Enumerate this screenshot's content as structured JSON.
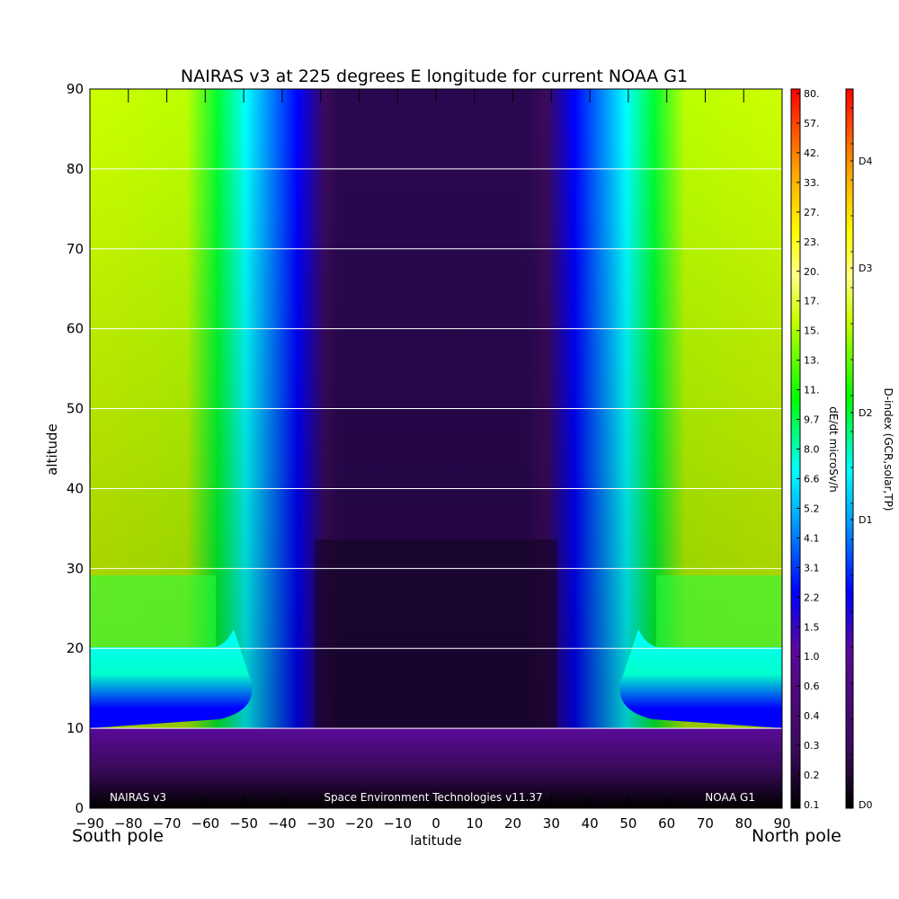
{
  "chart_data": {
    "type": "heatmap",
    "title": "NAIRAS v3 at 225 degrees E longitude for current NOAA G1",
    "xlabel": "latitude",
    "ylabel": "altitude",
    "xlim": [
      -90,
      90
    ],
    "ylim": [
      0,
      90
    ],
    "x_ticks": [
      "-90",
      "-80",
      "-70",
      "-60",
      "-50",
      "-40",
      "-30",
      "-20",
      "-10",
      "0",
      "10",
      "20",
      "30",
      "40",
      "50",
      "60",
      "70",
      "80",
      "90"
    ],
    "y_ticks": [
      "0",
      "10",
      "20",
      "30",
      "40",
      "50",
      "60",
      "70",
      "80",
      "90"
    ],
    "grid": "horizontal lines at every 10 altitude",
    "left_endpoint_label": "South pole",
    "right_endpoint_label": "North pole",
    "inner_annotations": {
      "left": "NAIRAS v3",
      "center": "Space Environment Technologies v11.37",
      "right": "NOAA G1"
    },
    "colorbar_dose": {
      "label": "dE/dt microSv/h",
      "tick_labels": [
        "0.1",
        "0.2",
        "0.3",
        "0.4",
        "0.6",
        "1.0",
        "1.5",
        "2.2",
        "3.1",
        "4.1",
        "5.2",
        "6.6",
        "8.0",
        "9.7",
        "11.",
        "13.",
        "15.",
        "17.",
        "20.",
        "23.",
        "27.",
        "33.",
        "42.",
        "57.",
        "80."
      ]
    },
    "colorbar_dindex": {
      "label": "D-index (GCR,solar,TP)",
      "tick_labels": [
        "D0",
        "D1",
        "D2",
        "D3",
        "D4"
      ]
    },
    "colormap": [
      "#000000",
      "#3a0a5a",
      "#5b0a8a",
      "#0000ff",
      "#00ffff",
      "#00ff00",
      "#ccff00",
      "#ffff66",
      "#ffff00",
      "#ff8800",
      "#ff0000"
    ],
    "field_note_units": "dose rate in microSv/h",
    "field_samples": {
      "latitudes": [
        -90,
        -60,
        -45,
        -35,
        -20,
        0,
        20,
        30,
        45,
        60,
        90
      ],
      "altitudes": [
        0,
        10,
        20,
        30,
        50,
        90
      ],
      "values": [
        [
          0.2,
          0.2,
          0.15,
          0.12,
          0.1,
          0.1,
          0.1,
          0.12,
          0.15,
          0.2,
          0.2
        ],
        [
          1.0,
          1.0,
          0.6,
          0.4,
          0.3,
          0.3,
          0.3,
          0.4,
          0.6,
          1.0,
          1.0
        ],
        [
          3.1,
          2.2,
          1.5,
          0.5,
          0.2,
          0.2,
          0.2,
          0.5,
          1.5,
          2.2,
          3.1
        ],
        [
          11.0,
          9.7,
          2.2,
          0.6,
          0.3,
          0.3,
          0.3,
          0.6,
          2.2,
          9.7,
          11.0
        ],
        [
          15.0,
          13.0,
          2.5,
          0.7,
          0.3,
          0.3,
          0.3,
          0.7,
          2.5,
          13.0,
          15.0
        ],
        [
          17.0,
          15.0,
          2.8,
          0.8,
          0.3,
          0.3,
          0.3,
          0.8,
          2.8,
          15.0,
          17.0
        ]
      ]
    }
  }
}
